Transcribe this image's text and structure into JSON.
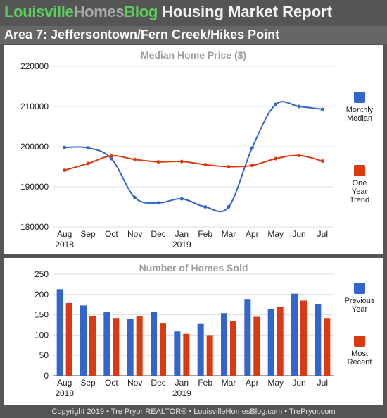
{
  "header": {
    "brand_part1": "Louisville",
    "brand_part2": "Homes",
    "brand_part3": "Blog",
    "report_title": "Housing Market Report",
    "area_title": "Area 7: Jeffersontown/Fern Creek/Hikes Point"
  },
  "footer": {
    "text": "Copyright 2019 • Tre Pryor REALTOR® • LouisvilleHomesBlog.com • TrePryor.com"
  },
  "colors": {
    "blue": "#3366cc",
    "red": "#dc3912",
    "brand_green": "#5cd05c",
    "background": "#555555"
  },
  "chart_data": [
    {
      "type": "line",
      "title": "Median Home Price ($)",
      "categories": [
        "Aug",
        "Sep",
        "Oct",
        "Nov",
        "Dec",
        "Jan",
        "Feb",
        "Mar",
        "Apr",
        "May",
        "Jun",
        "Jul"
      ],
      "year_labels": [
        "2018",
        "",
        "",
        "",
        "",
        "2019",
        "",
        "",
        "",
        "",
        "",
        ""
      ],
      "ylim": [
        180000,
        220000
      ],
      "yticks": [
        "180000",
        "190000",
        "200000",
        "210000",
        "220000"
      ],
      "ytick_values": [
        180000,
        190000,
        200000,
        210000,
        220000
      ],
      "series": [
        {
          "name_lines": [
            "Monthly",
            "Median"
          ],
          "color": "#3366cc",
          "values": [
            199800,
            199700,
            197000,
            187300,
            186000,
            187000,
            185000,
            185000,
            199700,
            210500,
            210000,
            209300
          ]
        },
        {
          "name_lines": [
            "One",
            "Year",
            "Trend"
          ],
          "color": "#dc3912",
          "values": [
            194100,
            195800,
            197700,
            196800,
            196200,
            196300,
            195500,
            195000,
            195300,
            197000,
            197800,
            196400
          ]
        }
      ],
      "grid": true,
      "legend": "right"
    },
    {
      "type": "bar",
      "title": "Number of Homes Sold",
      "categories": [
        "Aug",
        "Sep",
        "Oct",
        "Nov",
        "Dec",
        "Jan",
        "Feb",
        "Mar",
        "Apr",
        "May",
        "Jun",
        "Jul"
      ],
      "year_labels": [
        "2018",
        "",
        "",
        "",
        "",
        "2019",
        "",
        "",
        "",
        "",
        "",
        ""
      ],
      "ylim": [
        0,
        250
      ],
      "yticks": [
        "0",
        "50",
        "100",
        "150",
        "200",
        "250"
      ],
      "ytick_values": [
        0,
        50,
        100,
        150,
        200,
        250
      ],
      "series": [
        {
          "name_lines": [
            "Previous",
            "Year"
          ],
          "color": "#3366cc",
          "values": [
            213,
            173,
            157,
            140,
            157,
            109,
            129,
            154,
            189,
            165,
            202,
            177
          ]
        },
        {
          "name_lines": [
            "Most",
            "Recent"
          ],
          "color": "#dc3912",
          "values": [
            179,
            147,
            142,
            147,
            130,
            103,
            100,
            135,
            145,
            169,
            185,
            142
          ]
        }
      ],
      "grid": true,
      "legend": "right"
    }
  ]
}
